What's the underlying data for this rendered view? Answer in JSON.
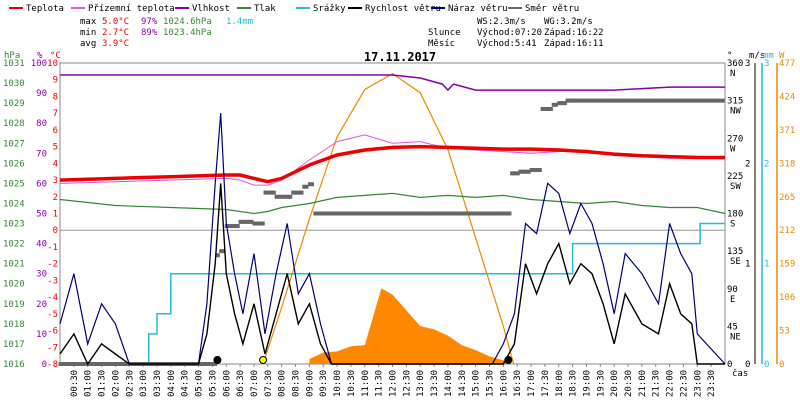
{
  "chart_data": {
    "type": "line",
    "title": "17.11.2017",
    "x_axis_label": "čas",
    "x_ticks": [
      "00:30",
      "01:00",
      "01:30",
      "02:00",
      "02:30",
      "03:00",
      "03:30",
      "04:00",
      "04:30",
      "05:00",
      "05:30",
      "06:00",
      "06:30",
      "07:00",
      "07:30",
      "08:00",
      "08:30",
      "09:00",
      "09:30",
      "10:00",
      "10:30",
      "11:00",
      "11:30",
      "12:00",
      "12:30",
      "13:00",
      "13:30",
      "14:00",
      "14:30",
      "15:00",
      "15:30",
      "16:00",
      "16:30",
      "17:00",
      "17:30",
      "18:00",
      "18:30",
      "19:00",
      "19:30",
      "20:00",
      "20:30",
      "21:00",
      "21:30",
      "22:00",
      "22:30",
      "23:00",
      "23:30"
    ],
    "legend": [
      {
        "label": "Teplota",
        "color": "#ee0000"
      },
      {
        "label": "Přízemní teplota",
        "color": "#dd55dd"
      },
      {
        "label": "Vlhkost",
        "color": "#8800aa"
      },
      {
        "label": "Tlak",
        "color": "#338833"
      },
      {
        "label": "Srážky",
        "color": "#22bbdd"
      },
      {
        "label": "Rychlost větru",
        "color": "#000000"
      },
      {
        "label": "Náraz větru",
        "color": "#000077"
      },
      {
        "label": "Směr větru",
        "color": "#666666"
      }
    ],
    "stats": {
      "max_label": "max",
      "min_label": "min",
      "avg_label": "avg",
      "max_temp": "5.0°C",
      "max_hum": "97%",
      "max_press": "1024.6hPa",
      "max_rain": "1.4mm",
      "min_temp": "2.7°C",
      "min_hum": "89%",
      "min_press": "1023.4hPa",
      "avg_temp": "3.9°C"
    },
    "info": {
      "ws": "WS:2.3m/s",
      "wg": "WG:3.2m/s",
      "sun_label": "Slunce",
      "sun_rise": "Východ:07:20",
      "sun_set": "Západ:16:22",
      "moon_label": "Měsíc",
      "moon_rise": "Východ:5:41",
      "moon_set": "Západ:16:11"
    },
    "axes": {
      "hpa": {
        "label": "hPa",
        "ticks": [
          "1031",
          "1030",
          "1029",
          "1028",
          "1027",
          "1026",
          "1025",
          "1024",
          "1023",
          "1022",
          "1021",
          "1020",
          "1019",
          "1018",
          "1017",
          "1016"
        ],
        "color": "#338833"
      },
      "percent": {
        "label": "%",
        "ticks": [
          "100",
          "90",
          "80",
          "70",
          "60",
          "50",
          "40",
          "30",
          "20",
          "10",
          "0"
        ],
        "color": "#8800aa"
      },
      "celsius": {
        "label": "°C",
        "ticks": [
          "10",
          "9",
          "8",
          "7",
          "6",
          "5",
          "4",
          "3",
          "2",
          "1",
          "0",
          "-1",
          "-2",
          "-3",
          "-4",
          "-5",
          "-6",
          "-7",
          "-8"
        ],
        "color": "#ee0000"
      },
      "direction": {
        "label": "°",
        "ticks": [
          {
            "v": "360",
            "d": "N"
          },
          {
            "v": "315",
            "d": "NW"
          },
          {
            "v": "270",
            "d": "W"
          },
          {
            "v": "225",
            "d": "SW"
          },
          {
            "v": "180",
            "d": "S"
          },
          {
            "v": "135",
            "d": "SE"
          },
          {
            "v": "90",
            "d": "E"
          },
          {
            "v": "45",
            "d": "NE"
          },
          {
            "v": "0",
            "d": ""
          }
        ]
      },
      "ms": {
        "label": "m/s",
        "ticks": [
          "3",
          "2",
          "1",
          "0"
        ]
      },
      "mm": {
        "label": "mm",
        "ticks": [
          "3",
          "2",
          "1",
          "0"
        ],
        "color": "#22bbdd"
      },
      "w": {
        "label": "W",
        "ticks": [
          "477",
          "424",
          "371",
          "318",
          "265",
          "212",
          "159",
          "106",
          "53",
          "0"
        ],
        "color": "#ee8800"
      }
    },
    "series": [
      {
        "name": "Teplota",
        "unit": "°C",
        "x": [
          0,
          1,
          2,
          3,
          4,
          5,
          6,
          6.5,
          7,
          7.5,
          8,
          9,
          10,
          11,
          12,
          13,
          14,
          15,
          16,
          17,
          18,
          19,
          20,
          21,
          22,
          23,
          24
        ],
        "y": [
          3.0,
          3.05,
          3.1,
          3.15,
          3.2,
          3.25,
          3.3,
          3.3,
          3.1,
          2.9,
          3.1,
          3.9,
          4.5,
          4.8,
          4.95,
          5.0,
          4.95,
          4.9,
          4.85,
          4.85,
          4.8,
          4.7,
          4.55,
          4.45,
          4.4,
          4.35,
          4.35
        ]
      },
      {
        "name": "Přízemní teplota",
        "unit": "°C",
        "x": [
          0,
          6,
          6.5,
          7,
          7.5,
          8,
          9,
          10,
          11,
          12,
          13,
          14,
          15,
          16,
          17,
          18,
          19,
          20,
          22,
          24
        ],
        "y": [
          2.8,
          3.1,
          3.0,
          2.7,
          2.7,
          3.0,
          4.2,
          5.3,
          5.7,
          5.2,
          5.3,
          4.9,
          4.8,
          4.7,
          4.6,
          4.7,
          4.8,
          4.5,
          4.3,
          4.3
        ]
      },
      {
        "name": "Vlhkost",
        "unit": "%",
        "x": [
          0,
          6,
          8,
          9,
          10,
          11,
          12,
          13,
          13.8,
          14,
          14.2,
          15,
          18,
          20,
          22,
          24
        ],
        "y": [
          96,
          96,
          96,
          96,
          96,
          96,
          96,
          95,
          93,
          91,
          93,
          91,
          91,
          91,
          92,
          92
        ]
      },
      {
        "name": "Tlak",
        "unit": "hPa",
        "x": [
          0,
          2,
          4,
          6,
          7,
          7.5,
          8,
          9,
          10,
          11,
          12,
          13,
          14,
          15,
          16,
          17,
          18,
          19,
          20,
          21,
          22,
          23,
          24
        ],
        "y": [
          1024.2,
          1023.9,
          1023.8,
          1023.7,
          1023.5,
          1023.6,
          1023.8,
          1024.0,
          1024.3,
          1024.4,
          1024.5,
          1024.3,
          1024.4,
          1024.3,
          1024.4,
          1024.2,
          1024.1,
          1024.0,
          1024.1,
          1023.9,
          1023.8,
          1023.8,
          1023.5
        ]
      },
      {
        "name": "Srážky",
        "unit": "mm",
        "x": [
          0,
          3.0,
          3.2,
          3.5,
          3.8,
          4.0,
          16.0,
          18.5,
          18.6,
          21.5,
          21.6,
          23.0,
          23.1,
          24
        ],
        "y": [
          0,
          0,
          0.3,
          0.5,
          0.5,
          0.9,
          0.9,
          1.2,
          1.2,
          1.2,
          1.2,
          1.2,
          1.4,
          1.4
        ]
      },
      {
        "name": "Rychlost větru",
        "unit": "m/s",
        "x": [
          0,
          0.5,
          1,
          1.5,
          2,
          2.5,
          3,
          3.5,
          4,
          4.5,
          5,
          5.3,
          5.6,
          5.8,
          6.0,
          6.3,
          6.6,
          7.0,
          7.4,
          7.8,
          8.2,
          8.6,
          9.0,
          9.4,
          9.8,
          10.2,
          11,
          12,
          13,
          14,
          15,
          15.6,
          16,
          16.4,
          16.8,
          17.2,
          17.6,
          18.0,
          18.4,
          18.8,
          19.2,
          19.6,
          20,
          20.4,
          21,
          21.6,
          22,
          22.4,
          22.8,
          23,
          24
        ],
        "y": [
          0.1,
          0.3,
          0,
          0.2,
          0.1,
          0,
          0,
          0,
          0,
          0,
          0,
          0.3,
          1.0,
          1.8,
          0.9,
          0.5,
          0.2,
          0.6,
          0.1,
          0.5,
          0.9,
          0.4,
          0.6,
          0.2,
          0,
          0,
          0,
          0,
          0,
          0,
          0,
          0,
          0,
          0.2,
          1.0,
          0.7,
          1.0,
          1.2,
          0.8,
          1.0,
          0.9,
          0.6,
          0.2,
          0.7,
          0.4,
          0.3,
          0.8,
          0.5,
          0.4,
          0,
          0
        ]
      },
      {
        "name": "Náraz větru",
        "unit": "m/s",
        "x": [
          0,
          0.5,
          1,
          1.5,
          2,
          2.5,
          3,
          4,
          5,
          5.3,
          5.6,
          5.8,
          6.0,
          6.3,
          6.6,
          7.0,
          7.4,
          7.8,
          8.2,
          8.6,
          9.0,
          9.4,
          9.8,
          10.2,
          11,
          12,
          13,
          14,
          15,
          15.6,
          16,
          16.4,
          16.8,
          17.2,
          17.6,
          18.0,
          18.4,
          18.8,
          19.2,
          19.6,
          20,
          20.4,
          21,
          21.6,
          22,
          22.4,
          22.8,
          23,
          24
        ],
        "y": [
          0.4,
          0.9,
          0.2,
          0.6,
          0.4,
          0,
          0,
          0,
          0,
          0.6,
          1.8,
          2.5,
          1.4,
          0.9,
          0.5,
          1.1,
          0.3,
          0.9,
          1.4,
          0.7,
          0.9,
          0.4,
          0,
          0,
          0,
          0,
          0,
          0,
          0,
          0,
          0.2,
          0.5,
          1.4,
          1.3,
          1.8,
          1.7,
          1.3,
          1.6,
          1.4,
          1.0,
          0.5,
          1.1,
          0.9,
          0.6,
          1.4,
          1.1,
          0.9,
          0.3,
          0
        ]
      },
      {
        "name": "Směr větru",
        "unit": "°",
        "x": [
          0,
          5.5,
          5.7,
          5.8,
          6,
          6.5,
          7,
          7.4,
          7.8,
          8.4,
          8.8,
          9.0,
          9.2,
          16,
          16.3,
          16.6,
          17.0,
          17.4,
          17.8,
          18.0,
          18.3,
          18.6,
          24
        ],
        "y": [
          0,
          0,
          130,
          135,
          165,
          170,
          168,
          205,
          200,
          205,
          212,
          215,
          180,
          180,
          228,
          230,
          232,
          305,
          310,
          312,
          315,
          315,
          315
        ]
      },
      {
        "name": "Solar",
        "unit": "W",
        "x": [
          7.33,
          8,
          9,
          10,
          11,
          12,
          13,
          14,
          15,
          16,
          16.37
        ],
        "y": [
          0,
          90,
          230,
          360,
          435,
          460,
          430,
          340,
          200,
          60,
          0
        ]
      }
    ],
    "radiation_fill": {
      "x": [
        9.0,
        9.5,
        10,
        10.5,
        11,
        11.3,
        11.6,
        12,
        12.5,
        13,
        13.5,
        14,
        14.5,
        15,
        15.5,
        16,
        16.3
      ],
      "y": [
        8,
        18,
        20,
        28,
        30,
        75,
        120,
        110,
        85,
        60,
        55,
        45,
        30,
        22,
        12,
        6,
        0
      ]
    },
    "markers": [
      {
        "label": "moonrise",
        "x": 5.68,
        "color": "#000000"
      },
      {
        "label": "sunrise",
        "x": 7.33,
        "color": "#ffff00"
      },
      {
        "label": "moonset",
        "x": 16.18,
        "color": "#000000"
      }
    ]
  }
}
